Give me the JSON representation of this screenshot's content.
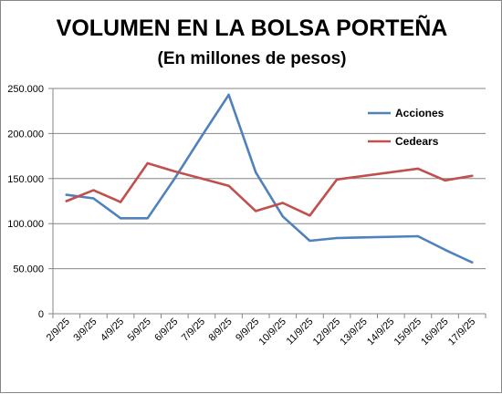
{
  "chart_data": {
    "type": "line",
    "title": "VOLUMEN EN LA BOLSA PORTEÑA",
    "subtitle": "(En millones de pesos)",
    "xlabel": "",
    "ylabel": "",
    "categories": [
      "2/9/25",
      "3/9/25",
      "4/9/25",
      "5/9/25",
      "6/9/25",
      "7/9/25",
      "8/9/25",
      "9/9/25",
      "10/9/25",
      "11/9/25",
      "12/9/25",
      "13/9/25",
      "14/9/25",
      "15/9/25",
      "16/9/25",
      "17/9/25"
    ],
    "ylim": [
      0,
      250000
    ],
    "yticks": [
      0,
      50000,
      100000,
      150000,
      200000,
      250000
    ],
    "ytick_labels": [
      "0",
      "50.000",
      "100.000",
      "150.000",
      "200.000",
      "250.000"
    ],
    "grid": true,
    "legend_position": "top-right",
    "series": [
      {
        "name": "Acciones",
        "color": "#4f81bd",
        "values": [
          132000,
          128000,
          106000,
          106000,
          150000,
          197000,
          243000,
          157000,
          108000,
          81000,
          84000,
          null,
          null,
          86000,
          71000,
          57000
        ]
      },
      {
        "name": "Cedears",
        "color": "#c0504d",
        "values": [
          125000,
          137000,
          124000,
          167000,
          158000,
          150000,
          142000,
          114000,
          123000,
          109000,
          149000,
          null,
          null,
          161000,
          148000,
          153000
        ]
      }
    ]
  }
}
